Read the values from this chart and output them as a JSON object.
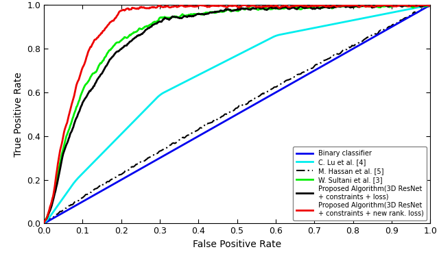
{
  "title": "",
  "xlabel": "False Positive Rate",
  "ylabel": "True Positive Rate",
  "xlim": [
    0,
    1
  ],
  "ylim": [
    0,
    1
  ],
  "xticks": [
    0,
    0.1,
    0.2,
    0.3,
    0.4,
    0.5,
    0.6,
    0.7,
    0.8,
    0.9,
    1
  ],
  "yticks": [
    0,
    0.2,
    0.4,
    0.6,
    0.8,
    1
  ],
  "legend_entries": [
    "Binary classifier",
    "C. Lu et al. [4]",
    "M. Hassan et al. [5]",
    "W. Sultani et al. [3]",
    "Proposed Algorithm(3D ResNet\n+ constraints + loss)",
    "Proposed Algorithm(3D ResNet\n+ constraints + new rank. loss)"
  ],
  "line_colors": [
    "#0000EE",
    "#00EEEE",
    "#000000",
    "#00EE00",
    "#000000",
    "#EE0000"
  ],
  "line_widths": [
    2.0,
    2.0,
    1.5,
    2.0,
    2.0,
    2.0
  ],
  "background_color": "#FFFFFF"
}
